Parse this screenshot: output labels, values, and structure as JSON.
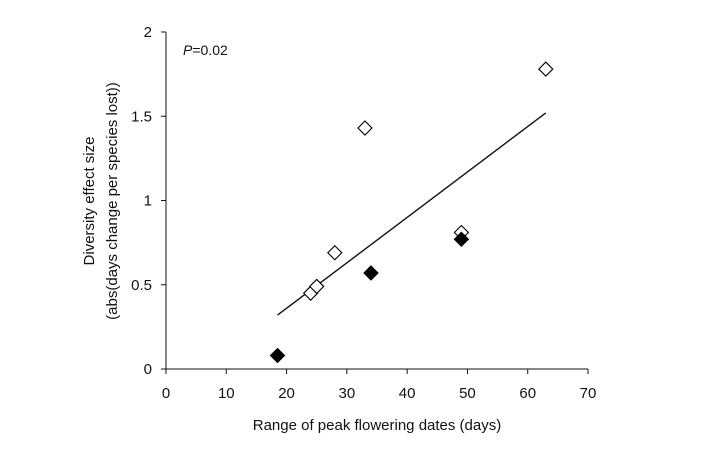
{
  "chart_data": {
    "type": "scatter",
    "title": "",
    "xlabel": "Range of peak flowering dates (days)",
    "ylabel_line1": "Diversity effect size",
    "ylabel_line2": "(abs(days change per species lost))",
    "xlim": [
      0,
      70
    ],
    "ylim": [
      0,
      2
    ],
    "xticks": [
      0,
      10,
      20,
      30,
      40,
      50,
      60,
      70
    ],
    "yticks": [
      0,
      0.5,
      1,
      1.5,
      2
    ],
    "xtick_labels": [
      "0",
      "10",
      "20",
      "30",
      "40",
      "50",
      "60",
      "70"
    ],
    "ytick_labels": [
      "0",
      "0.5",
      "1",
      "1.5",
      "2"
    ],
    "grid": false,
    "annotation": {
      "p_symbol": "P",
      "p_value": "=0.02"
    },
    "series": [
      {
        "name": "open",
        "marker": "diamond-open",
        "x": [
          24,
          25,
          28,
          33,
          49,
          63
        ],
        "y": [
          0.45,
          0.49,
          0.69,
          1.43,
          0.81,
          1.78
        ]
      },
      {
        "name": "filled",
        "marker": "diamond-filled",
        "x": [
          18.5,
          34,
          49
        ],
        "y": [
          0.08,
          0.57,
          0.77
        ]
      }
    ],
    "trendline": {
      "x": [
        18.5,
        63
      ],
      "y": [
        0.32,
        1.52
      ]
    }
  }
}
